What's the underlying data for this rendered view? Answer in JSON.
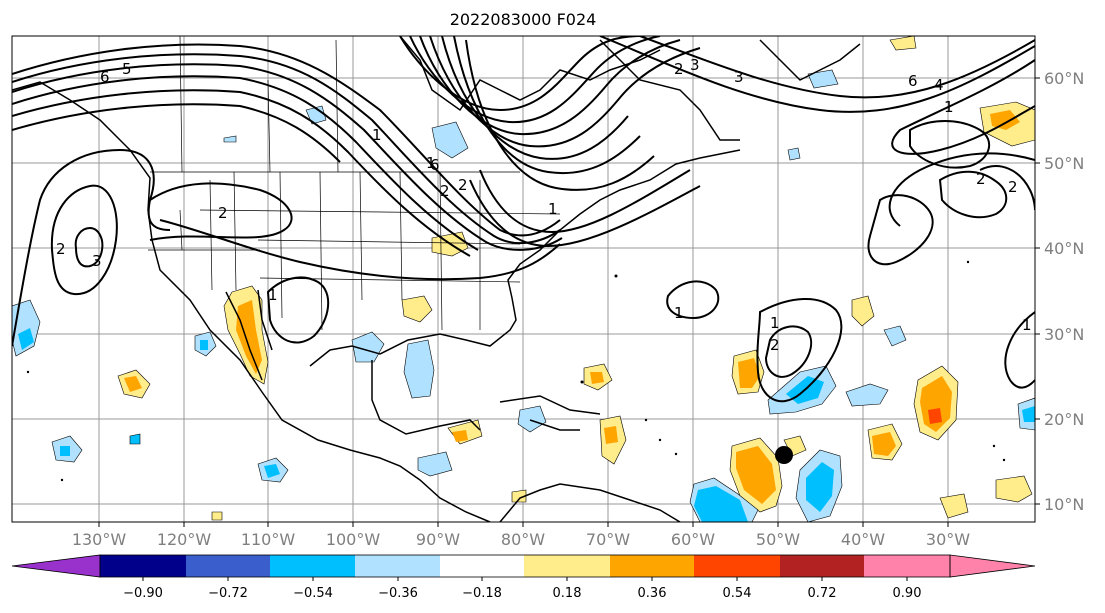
{
  "title": "2022083000 F024",
  "lon_ticks": [
    "130°W",
    "120°W",
    "110°W",
    "100°W",
    "90°W",
    "80°W",
    "70°W",
    "60°W",
    "50°W",
    "40°W",
    "30°W"
  ],
  "lat_ticks": [
    "60°N",
    "50°N",
    "40°N",
    "30°N",
    "20°N",
    "10°N"
  ],
  "colorbar": {
    "ticks": [
      "−0.90",
      "−0.72",
      "−0.54",
      "−0.36",
      "−0.18",
      "0.18",
      "0.36",
      "0.54",
      "0.72",
      "0.90"
    ],
    "colors": [
      "#9932cc",
      "#00008b",
      "#3a5fcd",
      "#00bfff",
      "#b0e2ff",
      "#ffffff",
      "#ffec8b",
      "#ffa500",
      "#ff4500",
      "#b22222",
      "#ff82ab"
    ]
  },
  "contour_labels": [
    "6",
    "5",
    "1",
    "6",
    "3",
    "2",
    "3",
    "6",
    "4",
    "1",
    "2",
    "1",
    "2",
    "3",
    "2",
    "2",
    "1",
    "1",
    "1",
    "2",
    "1",
    "2",
    "2",
    "1"
  ],
  "marker": {
    "label": "storm-position",
    "lon": "50°W",
    "lat": "16°N"
  }
}
